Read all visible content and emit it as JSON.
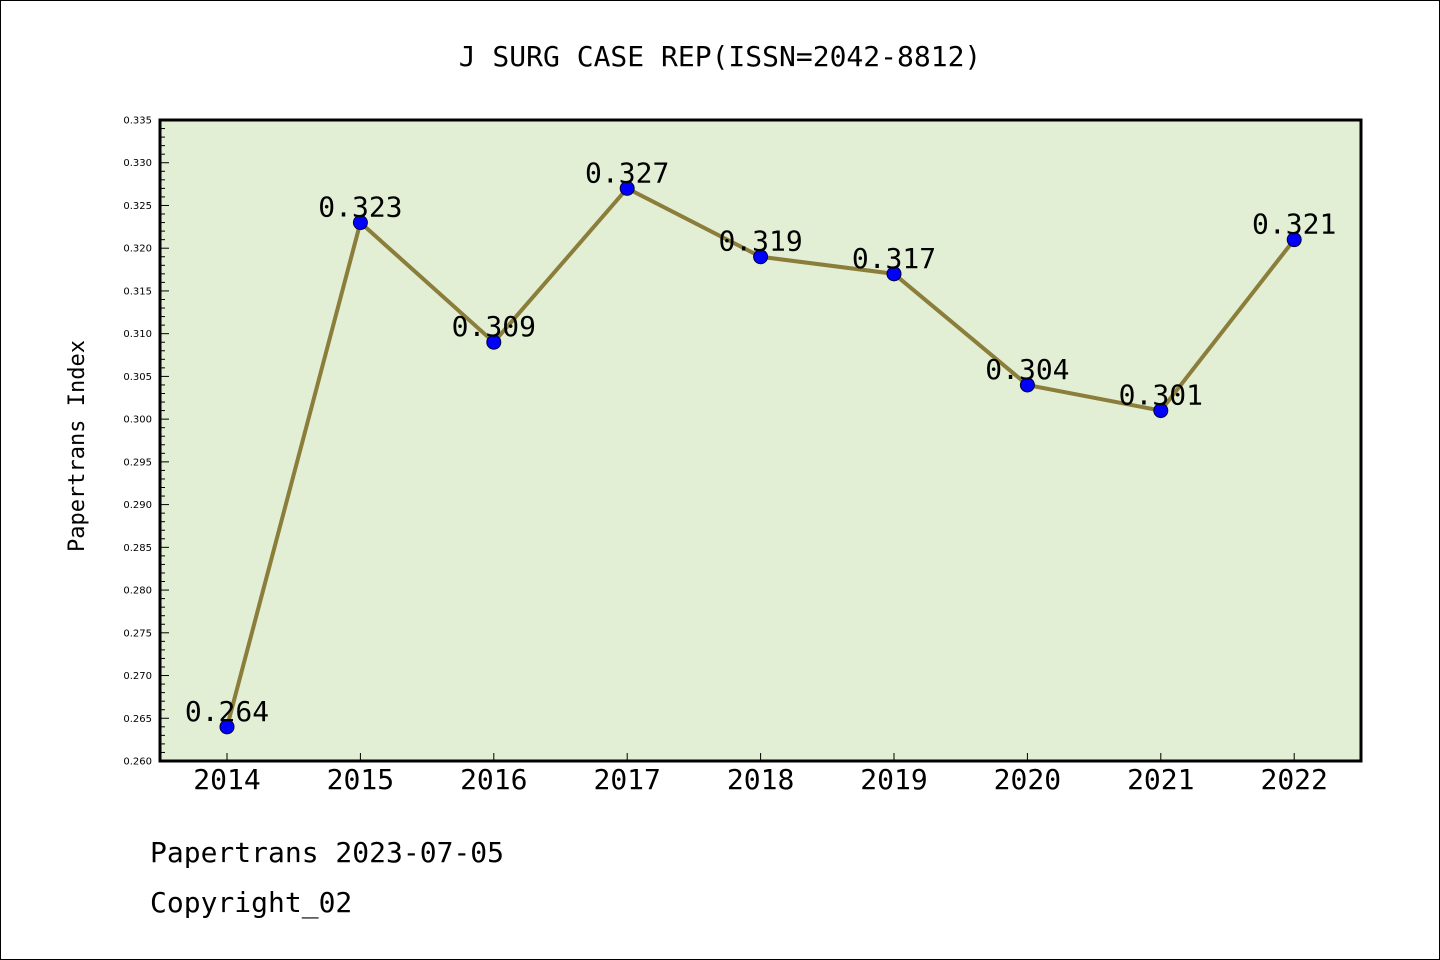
{
  "chart_data": {
    "type": "line",
    "title": "J SURG CASE REP(ISSN=2042-8812)",
    "xlabel": "",
    "ylabel": "Papertrans Index",
    "categories": [
      "2014",
      "2015",
      "2016",
      "2017",
      "2018",
      "2019",
      "2020",
      "2021",
      "2022"
    ],
    "series": [
      {
        "values": [
          0.264,
          0.323,
          0.309,
          0.327,
          0.319,
          0.317,
          0.304,
          0.301,
          0.321
        ]
      }
    ],
    "data_labels": [
      "0.264",
      "0.323",
      "0.309",
      "0.327",
      "0.319",
      "0.317",
      "0.304",
      "0.301",
      "0.321"
    ],
    "ylim": [
      0.26,
      0.335
    ],
    "yticks": [
      "0.260",
      "0.265",
      "0.270",
      "0.275",
      "0.280",
      "0.285",
      "0.290",
      "0.295",
      "0.300",
      "0.305",
      "0.310",
      "0.315",
      "0.320",
      "0.325",
      "0.330",
      "0.335"
    ],
    "grid": false,
    "legend": "none",
    "colors": {
      "plot_background": "#e2efd5",
      "line": "#8b7d3a",
      "marker": "#0000ff"
    }
  },
  "footer": {
    "line1": "Papertrans 2023-07-05",
    "line2": "Copyright_02"
  }
}
